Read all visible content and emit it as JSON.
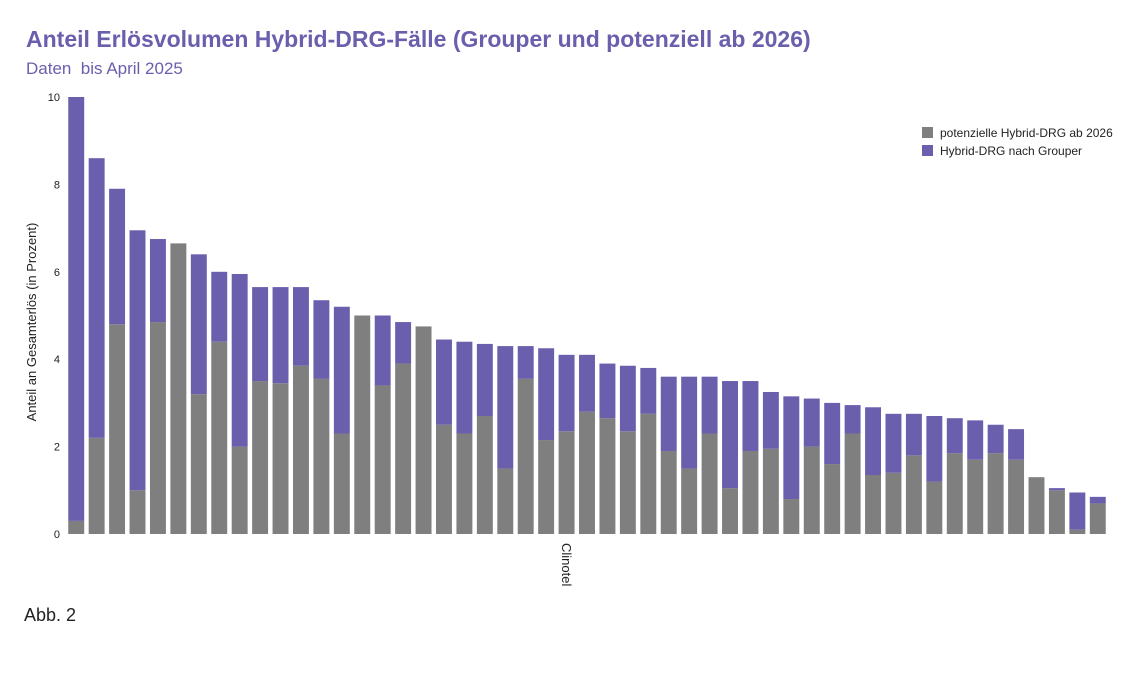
{
  "chart_data": {
    "type": "bar",
    "stacked": true,
    "title": "Anteil Erlösvolumen Hybrid-DRG-Fälle (Grouper und potenziell ab 2026)",
    "subtitle": "Daten  bis April 2025",
    "ylabel": "Anteil an Gesamterlös (in Prozent)",
    "xlabel": "Clinotel",
    "ylim": [
      0,
      10
    ],
    "yticks": [
      0,
      2,
      4,
      6,
      8,
      10
    ],
    "legend_position": "top-right",
    "series": [
      {
        "name": "potenzielle Hybrid-DRG ab 2026",
        "color": "#7f7f7f",
        "values": [
          0.3,
          2.2,
          4.8,
          1.0,
          4.85,
          6.65,
          3.2,
          4.4,
          2.0,
          3.5,
          3.45,
          3.85,
          3.55,
          2.3,
          5.0,
          3.4,
          3.9,
          4.75,
          2.5,
          2.3,
          2.7,
          1.5,
          3.55,
          2.15,
          2.35,
          2.8,
          2.65,
          2.35,
          2.75,
          1.9,
          1.5,
          2.3,
          1.05,
          1.9,
          1.95,
          0.8,
          2.0,
          1.6,
          2.3,
          1.35,
          1.4,
          1.8,
          1.2,
          1.85,
          1.7,
          1.85,
          1.7,
          1.3,
          1.0,
          0.1,
          0.7
        ]
      },
      {
        "name": "Hybrid-DRG nach Grouper",
        "color": "#6a5fad",
        "values": [
          9.7,
          6.4,
          3.1,
          5.95,
          1.9,
          0.0,
          3.2,
          1.6,
          3.95,
          2.15,
          2.2,
          1.8,
          1.8,
          2.9,
          0.0,
          1.6,
          0.95,
          0.0,
          1.95,
          2.1,
          1.65,
          2.8,
          0.75,
          2.1,
          1.75,
          1.3,
          1.25,
          1.5,
          1.05,
          1.7,
          2.1,
          1.3,
          2.45,
          1.6,
          1.3,
          2.35,
          1.1,
          1.4,
          0.65,
          1.55,
          1.35,
          0.95,
          1.5,
          0.8,
          0.9,
          0.65,
          0.7,
          0.0,
          0.05,
          0.85,
          0.15
        ]
      }
    ]
  },
  "footnote": "Abb. 2"
}
